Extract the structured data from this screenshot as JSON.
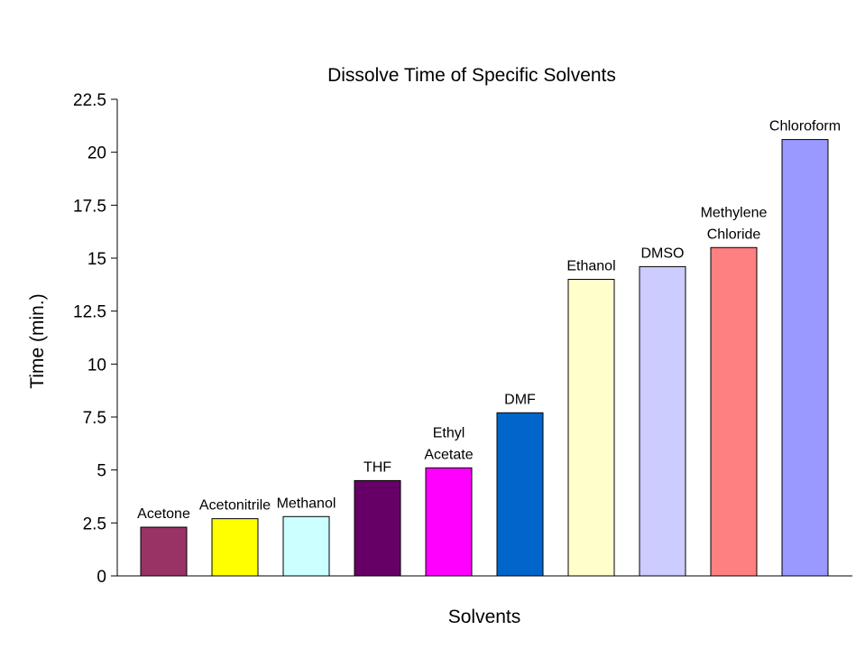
{
  "chart_data": {
    "type": "bar",
    "title": "Dissolve Time of Specific Solvents",
    "xlabel": "Solvents",
    "ylabel": "Time (min.)",
    "ylim": [
      0,
      22.5
    ],
    "yticks": [
      "0",
      "2.5",
      "5",
      "7.5",
      "10",
      "12.5",
      "15",
      "17.5",
      "20",
      "22.5"
    ],
    "grid": false,
    "legend": "none",
    "categories": [
      "Acetone",
      "Acetonitrile",
      "Methanol",
      "THF",
      "Ethyl Acetate",
      "DMF",
      "Ethanol",
      "DMSO",
      "Methylene Chloride",
      "Chloroform"
    ],
    "bar_labels": [
      [
        "Acetone"
      ],
      [
        "Acetonitrile"
      ],
      [
        "Methanol"
      ],
      [
        "THF"
      ],
      [
        "Ethyl",
        "Acetate"
      ],
      [
        "DMF"
      ],
      [
        "Ethanol"
      ],
      [
        "DMSO"
      ],
      [
        "Methylene",
        "Chloride"
      ],
      [
        "Chloroform"
      ]
    ],
    "values": [
      2.3,
      2.7,
      2.8,
      4.5,
      5.1,
      7.7,
      14.0,
      14.6,
      15.5,
      20.6
    ],
    "colors": [
      "#993366",
      "#FFFF00",
      "#CCFFFF",
      "#660066",
      "#FF00FF",
      "#0066CC",
      "#FFFFCC",
      "#CCCCFF",
      "#FF8080",
      "#9999FF"
    ]
  }
}
